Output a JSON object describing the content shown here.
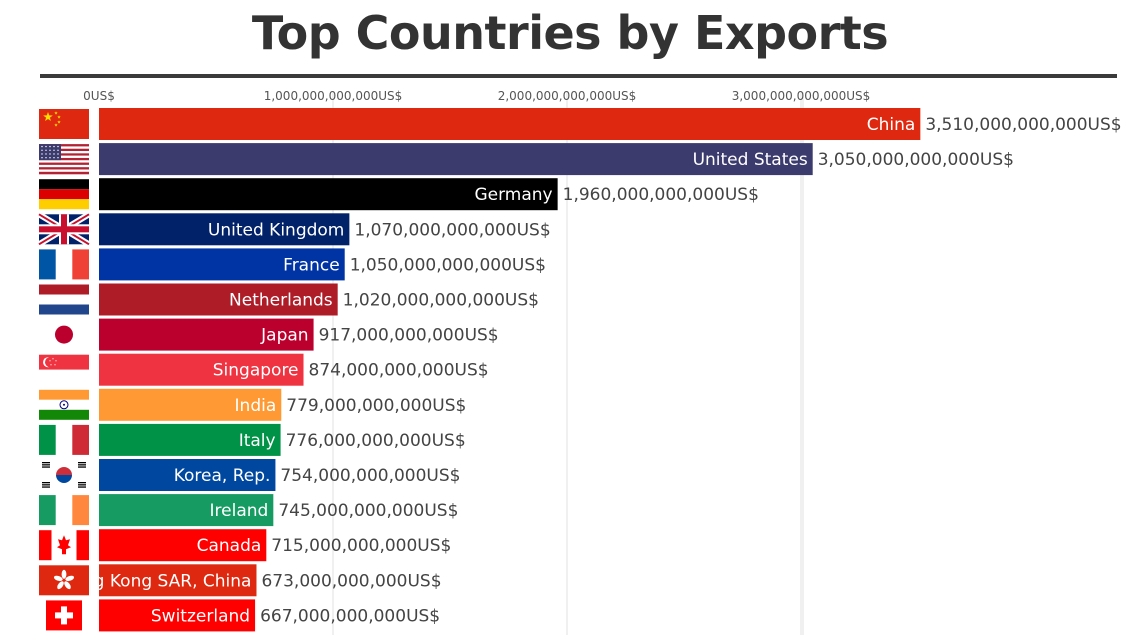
{
  "title": "Top Countries by Exports",
  "chart_data": {
    "type": "bar",
    "orientation": "horizontal",
    "title": "Top Countries by Exports",
    "xlabel": "",
    "ylabel": "",
    "xlim": [
      0,
      4000000000000
    ],
    "grid": true,
    "x_ticks": [
      {
        "value": 0,
        "label": "0US$"
      },
      {
        "value": 1000000000000,
        "label": "1,000,000,000,000US$"
      },
      {
        "value": 2000000000000,
        "label": "2,000,000,000,000US$"
      },
      {
        "value": 3000000000000,
        "label": "3,000,000,000,000US$"
      }
    ],
    "categories": [
      "China",
      "United States",
      "Germany",
      "United Kingdom",
      "France",
      "Netherlands",
      "Japan",
      "Singapore",
      "India",
      "Italy",
      "Korea, Rep.",
      "Ireland",
      "Canada",
      "Hong Kong SAR, China",
      "Switzerland"
    ],
    "values": [
      3510000000000,
      3050000000000,
      1960000000000,
      1070000000000,
      1050000000000,
      1020000000000,
      917000000000,
      874000000000,
      779000000000,
      776000000000,
      754000000000,
      745000000000,
      715000000000,
      673000000000,
      667000000000
    ],
    "value_labels": [
      "3,510,000,000,000US$",
      "3,050,000,000,000US$",
      "1,960,000,000,000US$",
      "1,070,000,000,000US$",
      "1,050,000,000,000US$",
      "1,020,000,000,000US$",
      "917,000,000,000US$",
      "874,000,000,000US$",
      "779,000,000,000US$",
      "776,000,000,000US$",
      "754,000,000,000US$",
      "745,000,000,000US$",
      "715,000,000,000US$",
      "673,000,000,000US$",
      "667,000,000,000US$"
    ],
    "colors": [
      "#de2910",
      "#3c3b6e",
      "#000000",
      "#012169",
      "#0034a5",
      "#ae1c28",
      "#bc002d",
      "#ef3340",
      "#ff9933",
      "#009246",
      "#0047a0",
      "#169b62",
      "#ff0000",
      "#de2910",
      "#ff0000"
    ],
    "flags": [
      "china-flag",
      "united-states-flag",
      "germany-flag",
      "united-kingdom-flag",
      "france-flag",
      "netherlands-flag",
      "japan-flag",
      "singapore-flag",
      "india-flag",
      "italy-flag",
      "korea-flag",
      "ireland-flag",
      "canada-flag",
      "hong-kong-flag",
      "switzerland-flag"
    ]
  }
}
